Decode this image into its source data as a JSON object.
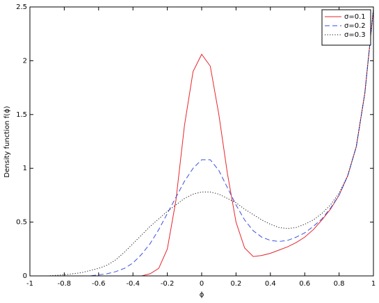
{
  "chart_data": {
    "type": "line",
    "xlabel": "ϕ",
    "ylabel": "Density function f(ϕ)",
    "x": [
      -1,
      -0.95,
      -0.9,
      -0.85,
      -0.8,
      -0.75,
      -0.7,
      -0.65,
      -0.6,
      -0.55,
      -0.5,
      -0.45,
      -0.4,
      -0.35,
      -0.3,
      -0.25,
      -0.2,
      -0.15,
      -0.1,
      -0.05,
      0,
      0.05,
      0.1,
      0.15,
      0.2,
      0.25,
      0.3,
      0.35,
      0.4,
      0.45,
      0.5,
      0.55,
      0.6,
      0.65,
      0.7,
      0.75,
      0.8,
      0.85,
      0.9,
      0.95,
      1
    ],
    "series": [
      {
        "name": "σ=0.1",
        "color": "#e8242a",
        "dash": "solid",
        "values": [
          0,
          0,
          0,
          0,
          0,
          0,
          0,
          0,
          0,
          0,
          0,
          0,
          0,
          0,
          0.02,
          0.07,
          0.25,
          0.7,
          1.4,
          1.9,
          2.06,
          1.95,
          1.5,
          0.95,
          0.5,
          0.26,
          0.18,
          0.19,
          0.21,
          0.24,
          0.27,
          0.31,
          0.36,
          0.43,
          0.52,
          0.62,
          0.75,
          0.93,
          1.2,
          1.7,
          2.48
        ]
      },
      {
        "name": "σ=0.2",
        "color": "#3a4fe0",
        "dash": "dashed",
        "values": [
          0,
          0,
          0,
          0,
          0,
          0,
          0,
          0,
          0.01,
          0.02,
          0.04,
          0.07,
          0.12,
          0.2,
          0.3,
          0.43,
          0.58,
          0.73,
          0.88,
          1.0,
          1.08,
          1.08,
          0.98,
          0.82,
          0.66,
          0.52,
          0.42,
          0.36,
          0.33,
          0.32,
          0.33,
          0.36,
          0.4,
          0.46,
          0.53,
          0.63,
          0.75,
          0.93,
          1.2,
          1.7,
          2.48
        ]
      },
      {
        "name": "σ=0.3",
        "color": "#111111",
        "dash": "dotted",
        "values": [
          0,
          0,
          0,
          0.005,
          0.01,
          0.02,
          0.03,
          0.05,
          0.07,
          0.1,
          0.15,
          0.22,
          0.3,
          0.38,
          0.46,
          0.53,
          0.6,
          0.66,
          0.72,
          0.76,
          0.78,
          0.78,
          0.76,
          0.72,
          0.68,
          0.62,
          0.57,
          0.52,
          0.48,
          0.45,
          0.44,
          0.45,
          0.48,
          0.52,
          0.58,
          0.66,
          0.77,
          0.93,
          1.2,
          1.7,
          2.48
        ]
      }
    ],
    "xlim": [
      -1,
      1
    ],
    "xticks": [
      -1,
      -0.8,
      -0.6,
      -0.4,
      -0.2,
      0,
      0.2,
      0.4,
      0.6,
      0.8,
      1
    ],
    "ylim": [
      0,
      2.5
    ],
    "yticks": [
      0,
      0.5,
      1,
      1.5,
      2,
      2.5
    ],
    "grid": false,
    "legend": "top-right"
  }
}
